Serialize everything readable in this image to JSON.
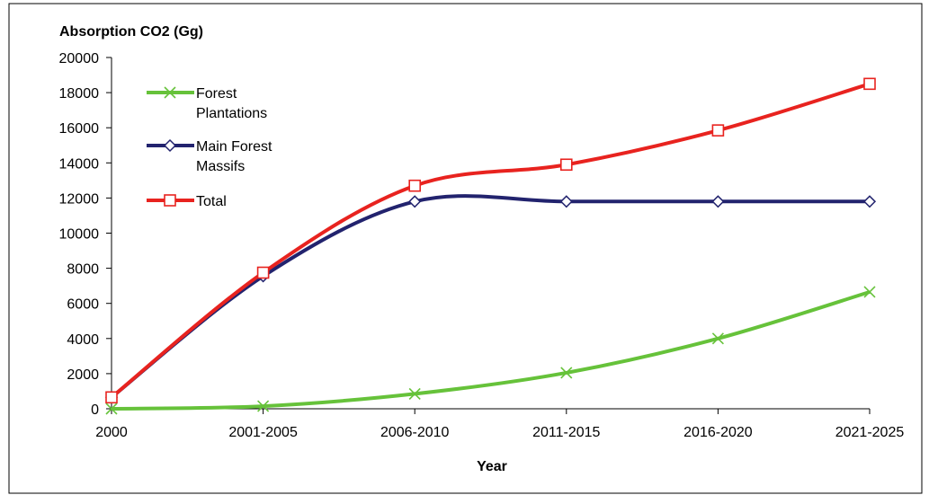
{
  "chart_data": {
    "type": "line",
    "title": "",
    "xlabel": "Year",
    "ylabel": "Absorption CO2 (Gg)",
    "categories": [
      "2000",
      "2001-2005",
      "2006-2010",
      "2011-2015",
      "2016-2020",
      "2021-2025"
    ],
    "ylim": [
      0,
      20000
    ],
    "yticks": [
      0,
      2000,
      4000,
      6000,
      8000,
      10000,
      12000,
      14000,
      16000,
      18000,
      20000
    ],
    "grid": false,
    "legend_position": "top-left",
    "series": [
      {
        "name": "Forest Plantations",
        "legend_lines": [
          "Forest",
          "Plantations"
        ],
        "color": "#66c23a",
        "marker": "x",
        "values": [
          0,
          150,
          850,
          2050,
          4000,
          6650
        ]
      },
      {
        "name": "Main Forest Massifs",
        "legend_lines": [
          "Main Forest",
          "Massifs"
        ],
        "color": "#22236e",
        "marker": "diamond",
        "values": [
          650,
          7550,
          11800,
          11800,
          11800,
          11800
        ]
      },
      {
        "name": "Total",
        "legend_lines": [
          "Total"
        ],
        "color": "#e8231f",
        "marker": "square",
        "values": [
          650,
          7750,
          12700,
          13900,
          15850,
          18500
        ]
      }
    ]
  }
}
